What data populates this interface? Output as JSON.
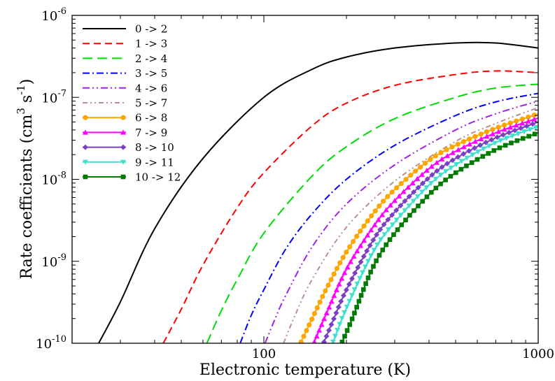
{
  "chart_data": {
    "type": "line",
    "xlabel": "Electronic temperature (K)",
    "ylabel": "Rate coefficients (cm",
    "ylabel_sup1": "3",
    "ylabel_mid": " s",
    "ylabel_sup2": "-1",
    "ylabel_end": ")",
    "xscale": "log",
    "yscale": "log",
    "xlim": [
      20,
      1000
    ],
    "ylim": [
      1e-10,
      1e-06
    ],
    "x_major_ticks": [
      100,
      1000
    ],
    "x_major_labels": [
      "100",
      "1000"
    ],
    "y_major_ticks": [
      1e-10,
      1e-09,
      1e-08,
      1e-07,
      1e-06
    ],
    "y_major_labels": [
      {
        "base": "10",
        "exp": "-10"
      },
      {
        "base": "10",
        "exp": "-9"
      },
      {
        "base": "10",
        "exp": "-8"
      },
      {
        "base": "10",
        "exp": "-7"
      },
      {
        "base": "10",
        "exp": "-6"
      }
    ],
    "grid": false,
    "legend_position": "top-left",
    "series": [
      {
        "name": "0 -> 2",
        "color": "#000000",
        "dash": "solid",
        "marker": "none",
        "x": [
          25,
          30,
          40,
          60,
          100,
          150,
          200,
          300,
          500,
          700,
          1000
        ],
        "y": [
          1e-10,
          3.2e-10,
          2.5e-09,
          1.8e-08,
          1e-07,
          2.2e-07,
          3.1e-07,
          4e-07,
          4.6e-07,
          4.6e-07,
          4e-07
        ]
      },
      {
        "name": "1 -> 3",
        "color": "#ff0000",
        "dash": "dashed",
        "marker": "none",
        "x": [
          43,
          50,
          60,
          80,
          100,
          150,
          200,
          300,
          500,
          700,
          1000
        ],
        "y": [
          1e-10,
          2.6e-10,
          9e-10,
          4.5e-09,
          1.2e-08,
          4.5e-08,
          8.5e-08,
          1.4e-07,
          1.9e-07,
          2.1e-07,
          2e-07
        ]
      },
      {
        "name": "2 -> 4",
        "color": "#00dd00",
        "dash": "longdash",
        "marker": "none",
        "x": [
          62,
          70,
          80,
          100,
          150,
          200,
          300,
          500,
          700,
          1000
        ],
        "y": [
          1e-10,
          2.5e-10,
          6e-10,
          2.2e-09,
          1.1e-08,
          2.5e-08,
          5.5e-08,
          1e-07,
          1.3e-07,
          1.45e-07
        ]
      },
      {
        "name": "3 -> 5",
        "color": "#0000ff",
        "dash": "dashdot",
        "marker": "none",
        "x": [
          82,
          90,
          100,
          120,
          150,
          200,
          300,
          500,
          700,
          1000
        ],
        "y": [
          1e-10,
          2.2e-10,
          4.5e-10,
          1.4e-09,
          3.8e-09,
          1e-08,
          2.6e-08,
          6e-08,
          8.8e-08,
          1.12e-07
        ]
      },
      {
        "name": "4 -> 6",
        "color": "#a020f0",
        "dash": "dashdotdot",
        "marker": "none",
        "x": [
          101,
          110,
          120,
          150,
          200,
          300,
          500,
          700,
          1000
        ],
        "y": [
          1e-10,
          2e-10,
          3.8e-10,
          1.5e-09,
          5e-09,
          1.5e-08,
          4e-08,
          6.3e-08,
          9e-08
        ]
      },
      {
        "name": "5 -> 7",
        "color": "#bc8f8f",
        "dash": "dashdotdot2",
        "marker": "none",
        "x": [
          118,
          130,
          150,
          200,
          300,
          500,
          700,
          1000
        ],
        "y": [
          1e-10,
          2.2e-10,
          6e-10,
          2.6e-09,
          9.5e-09,
          2.9e-08,
          4.8e-08,
          7.5e-08
        ]
      },
      {
        "name": "6 -> 8",
        "color": "#ffa500",
        "dash": "solid",
        "marker": "circle",
        "x": [
          136,
          150,
          170,
          200,
          250,
          300,
          400,
          500,
          700,
          1000
        ],
        "y": [
          1e-10,
          2e-10,
          4.8e-10,
          1.3e-09,
          3.8e-09,
          7.5e-09,
          1.7e-08,
          2.6e-08,
          4.2e-08,
          6.3e-08
        ]
      },
      {
        "name": "7 -> 9",
        "color": "#ff00ff",
        "dash": "solid",
        "marker": "triangle",
        "x": [
          152,
          170,
          200,
          250,
          300,
          400,
          500,
          700,
          1000
        ],
        "y": [
          1e-10,
          2.4e-10,
          8e-10,
          2.6e-09,
          5.5e-09,
          1.35e-08,
          2.2e-08,
          3.7e-08,
          5.6e-08
        ]
      },
      {
        "name": "8 -> 10",
        "color": "#7b3fc4",
        "dash": "solid",
        "marker": "diamond",
        "x": [
          165,
          180,
          200,
          250,
          300,
          400,
          500,
          700,
          1000
        ],
        "y": [
          1e-10,
          2e-10,
          4.5e-10,
          1.8e-09,
          4e-09,
          1.05e-08,
          1.8e-08,
          3.2e-08,
          5e-08
        ]
      },
      {
        "name": "9 -> 11",
        "color": "#40e0d0",
        "dash": "solid",
        "marker": "tridown",
        "x": [
          178,
          200,
          250,
          300,
          400,
          500,
          700,
          1000
        ],
        "y": [
          1e-10,
          2.7e-10,
          1.3e-09,
          3e-09,
          8.5e-09,
          1.5e-08,
          2.8e-08,
          4.4e-08
        ]
      },
      {
        "name": "10 -> 12",
        "color": "#007a00",
        "dash": "solid",
        "marker": "square",
        "x": [
          192,
          210,
          250,
          300,
          400,
          500,
          700,
          1000
        ],
        "y": [
          1e-10,
          2e-10,
          8.5e-10,
          2.2e-09,
          6.5e-09,
          1.2e-08,
          2.3e-08,
          3.7e-08
        ]
      }
    ]
  }
}
